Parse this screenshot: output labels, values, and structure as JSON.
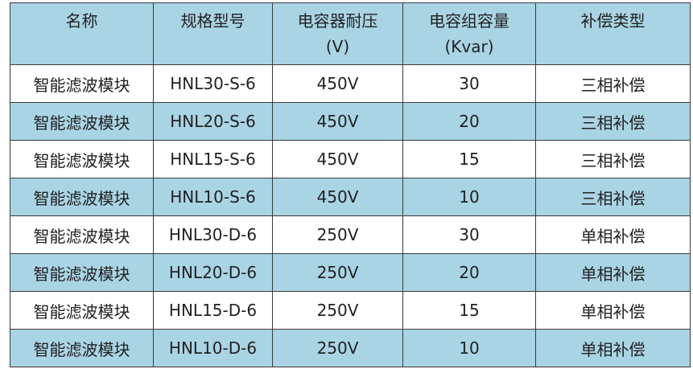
{
  "table": {
    "header": [
      [
        "名称"
      ],
      [
        "规格型号"
      ],
      [
        "电容器耐压",
        "(V)"
      ],
      [
        "电容组容量",
        "(Kvar)"
      ],
      [
        "补偿类型"
      ]
    ],
    "rows": [
      [
        "智能滤波模块",
        "HNL30-S-6",
        "450V",
        30,
        "三相补偿"
      ],
      [
        "智能滤波模块",
        "HNL20-S-6",
        "450V",
        20,
        "三相补偿"
      ],
      [
        "智能滤波模块",
        "HNL15-S-6",
        "450V",
        15,
        "三相补偿"
      ],
      [
        "智能滤波模块",
        "HNL10-S-6",
        "450V",
        10,
        "三相补偿"
      ],
      [
        "智能滤波模块",
        "HNL30-D-6",
        "250V",
        30,
        "单相补偿"
      ],
      [
        "智能滤波模块",
        "HNL20-D-6",
        "250V",
        20,
        "单相补偿"
      ],
      [
        "智能滤波模块",
        "HNL15-D-6",
        "250V",
        15,
        "单相补偿"
      ],
      [
        "智能滤波模块",
        "HNL10-D-6",
        "250V",
        10,
        "单相补偿"
      ]
    ]
  }
}
